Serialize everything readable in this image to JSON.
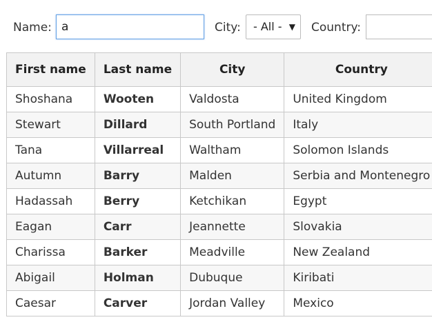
{
  "filters": {
    "name_label": "Name:",
    "name_value": "a",
    "city_label": "City:",
    "city_selected": "- All -",
    "country_label": "Country:",
    "country_value": ""
  },
  "table": {
    "headers": [
      "First name",
      "Last name",
      "City",
      "Country"
    ],
    "rows": [
      {
        "first": "Shoshana",
        "last": "Wooten",
        "city": "Valdosta",
        "country": "United Kingdom"
      },
      {
        "first": "Stewart",
        "last": "Dillard",
        "city": "South Portland",
        "country": "Italy"
      },
      {
        "first": "Tana",
        "last": "Villarreal",
        "city": "Waltham",
        "country": "Solomon Islands"
      },
      {
        "first": "Autumn",
        "last": "Barry",
        "city": "Malden",
        "country": "Serbia and Montenegro"
      },
      {
        "first": "Hadassah",
        "last": "Berry",
        "city": "Ketchikan",
        "country": "Egypt"
      },
      {
        "first": "Eagan",
        "last": "Carr",
        "city": "Jeannette",
        "country": "Slovakia"
      },
      {
        "first": "Charissa",
        "last": "Barker",
        "city": "Meadville",
        "country": "New Zealand"
      },
      {
        "first": "Abigail",
        "last": "Holman",
        "city": "Dubuque",
        "country": "Kiribati"
      },
      {
        "first": "Caesar",
        "last": "Carver",
        "city": "Jordan Valley",
        "country": "Mexico"
      }
    ]
  }
}
